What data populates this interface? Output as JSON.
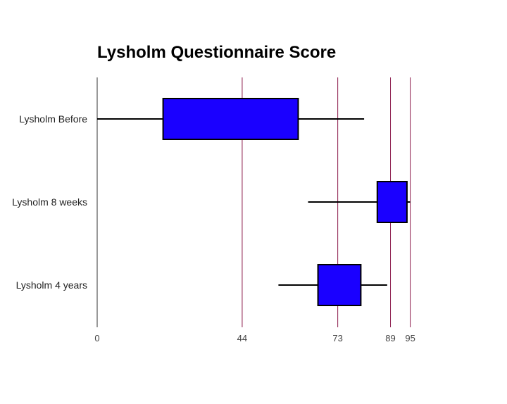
{
  "chart_data": {
    "type": "boxplot",
    "title": "Lysholm Questionnaire Score",
    "xlabel": "",
    "ylabel": "",
    "xlim": [
      0,
      100
    ],
    "ticks": [
      0,
      44,
      73,
      89,
      95
    ],
    "tick_labels": [
      "0",
      "44",
      "73",
      "89",
      "95"
    ],
    "grid": true,
    "legend": "none",
    "categories": [
      "Lysholm Before",
      "Lysholm 8 weeks",
      "Lysholm 4 years"
    ],
    "series": [
      {
        "category": "Lysholm Before",
        "min": 0,
        "q1": 20,
        "q3": 61,
        "max": 81
      },
      {
        "category": "Lysholm 8 weeks",
        "min": 64,
        "q1": 85,
        "q3": 94,
        "max": 95
      },
      {
        "category": "Lysholm 4 years",
        "min": 55,
        "q1": 67,
        "q3": 80,
        "max": 88
      }
    ],
    "colors": {
      "box": "#1a00ff",
      "gridline": "#8b1a4a",
      "axis": "#333333",
      "whisker": "#000000"
    }
  }
}
